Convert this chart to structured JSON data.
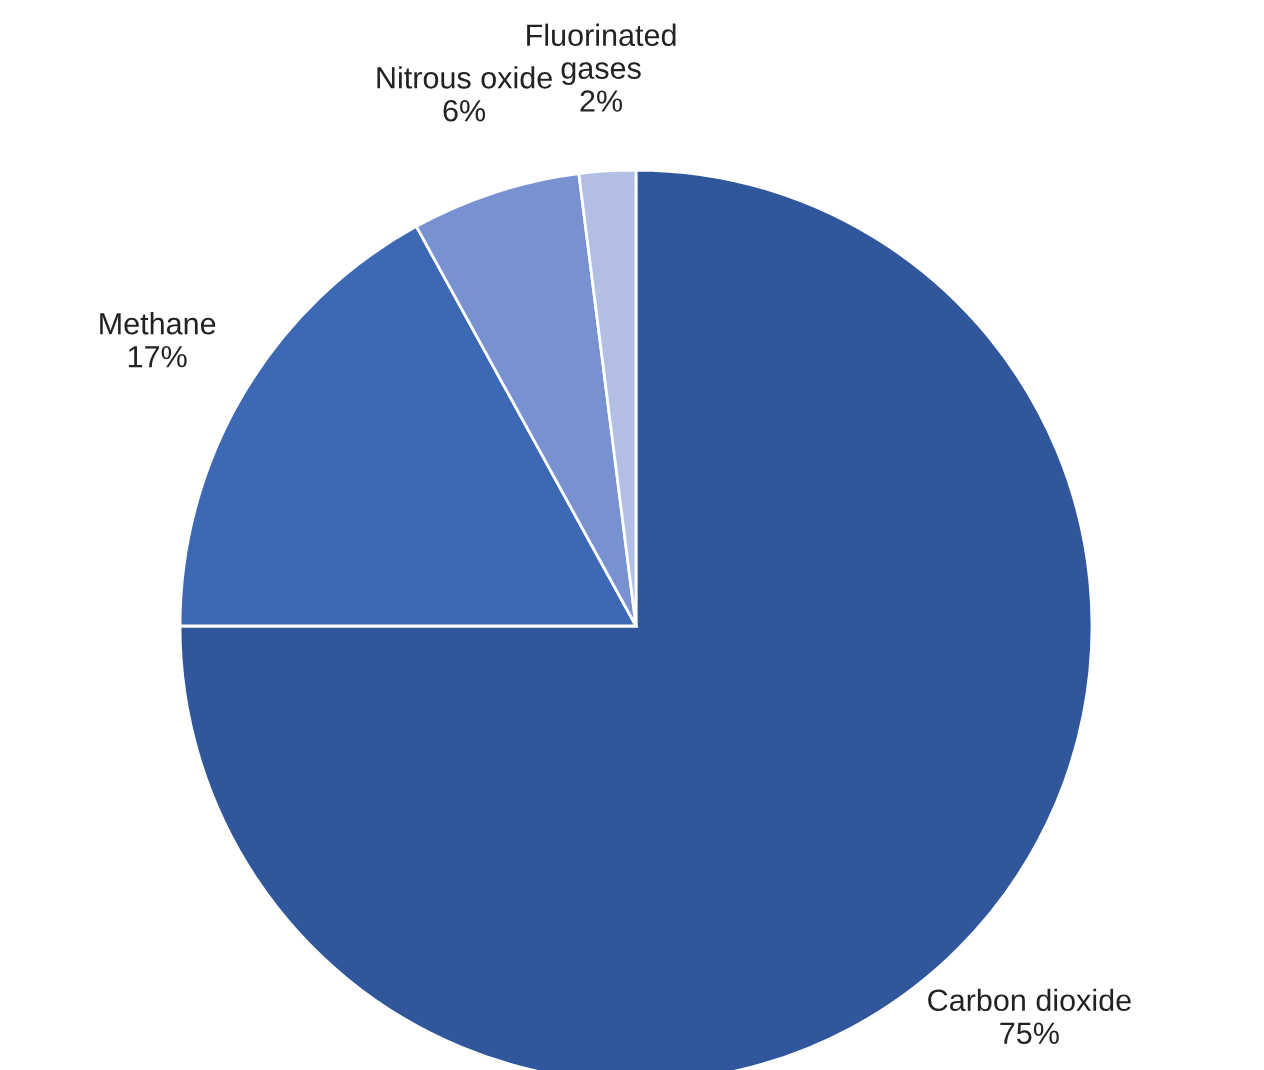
{
  "chart_data": {
    "type": "pie",
    "categories": [
      "Carbon dioxide",
      "Methane",
      "Nitrous oxide",
      "Fluorinated\ngases"
    ],
    "values": [
      75,
      17,
      6,
      2
    ],
    "value_labels": [
      "75%",
      "17%",
      "6%",
      "2%"
    ],
    "colors": [
      "#30569b",
      "#3d68b3",
      "#7891d0",
      "#b3bee4"
    ]
  }
}
